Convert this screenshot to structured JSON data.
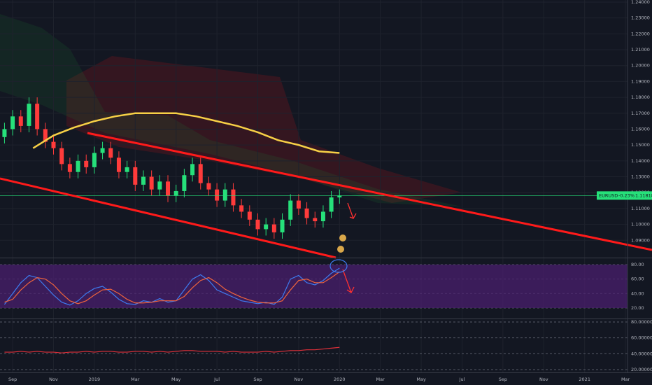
{
  "chart_data": [
    {
      "type": "candlestick",
      "symbol": "EURUSD",
      "change": "-0.23%",
      "last_price": 1.11818,
      "up_color": "#26e07a",
      "down_color": "#ff3b3b",
      "ma_color": "#f7d046",
      "grid": true,
      "x": [
        -0.4,
        0,
        0.4,
        0.8,
        1.2,
        1.6,
        2,
        2.4,
        2.8,
        3.2,
        3.6,
        4,
        4.4,
        4.8,
        5.2,
        5.6,
        6,
        6.4,
        6.8,
        7.2,
        7.6,
        8,
        8.4,
        8.8,
        9.2,
        9.6,
        10,
        10.4,
        10.8,
        11.2,
        11.6,
        12,
        12.4,
        12.8,
        13.2,
        13.6,
        14,
        14.4,
        14.8,
        15.2,
        15.6,
        16
      ],
      "open": [
        1.155,
        1.16,
        1.168,
        1.162,
        1.176,
        1.16,
        1.152,
        1.148,
        1.138,
        1.133,
        1.14,
        1.136,
        1.145,
        1.148,
        1.142,
        1.133,
        1.136,
        1.125,
        1.13,
        1.122,
        1.127,
        1.118,
        1.121,
        1.131,
        1.138,
        1.126,
        1.122,
        1.115,
        1.122,
        1.112,
        1.108,
        1.103,
        1.097,
        1.1,
        1.095,
        1.103,
        1.115,
        1.11,
        1.104,
        1.102,
        1.108,
        1.117
      ],
      "high": [
        1.164,
        1.172,
        1.172,
        1.18,
        1.18,
        1.164,
        1.156,
        1.152,
        1.142,
        1.144,
        1.144,
        1.149,
        1.152,
        1.152,
        1.146,
        1.14,
        1.14,
        1.134,
        1.134,
        1.131,
        1.131,
        1.125,
        1.135,
        1.142,
        1.142,
        1.13,
        1.126,
        1.126,
        1.126,
        1.116,
        1.112,
        1.107,
        1.104,
        1.104,
        1.107,
        1.119,
        1.119,
        1.114,
        1.108,
        1.112,
        1.121,
        1.122
      ],
      "low": [
        1.151,
        1.156,
        1.158,
        1.158,
        1.156,
        1.148,
        1.144,
        1.134,
        1.129,
        1.129,
        1.132,
        1.132,
        1.141,
        1.138,
        1.129,
        1.129,
        1.121,
        1.121,
        1.118,
        1.118,
        1.114,
        1.114,
        1.117,
        1.127,
        1.122,
        1.118,
        1.111,
        1.111,
        1.108,
        1.104,
        1.099,
        1.093,
        1.093,
        1.091,
        1.091,
        1.099,
        1.106,
        1.1,
        1.098,
        1.098,
        1.104,
        1.113
      ],
      "close": [
        1.16,
        1.168,
        1.162,
        1.176,
        1.16,
        1.152,
        1.148,
        1.138,
        1.133,
        1.14,
        1.136,
        1.145,
        1.148,
        1.142,
        1.133,
        1.136,
        1.125,
        1.13,
        1.122,
        1.127,
        1.118,
        1.121,
        1.131,
        1.138,
        1.126,
        1.122,
        1.115,
        1.122,
        1.112,
        1.108,
        1.103,
        1.097,
        1.1,
        1.095,
        1.103,
        1.115,
        1.11,
        1.104,
        1.102,
        1.108,
        1.117,
        1.118
      ],
      "ma_x": [
        1,
        2,
        3,
        4,
        5,
        6,
        7,
        8,
        9,
        10,
        11,
        12,
        13,
        14,
        15,
        16
      ],
      "ma_values": [
        1.148,
        1.156,
        1.161,
        1.165,
        1.168,
        1.17,
        1.17,
        1.17,
        1.168,
        1.165,
        1.162,
        1.158,
        1.153,
        1.15,
        1.146,
        1.145
      ],
      "xlim": [
        -0.62,
        30.1
      ],
      "xticks": [
        {
          "value": 0,
          "label": "Sep"
        },
        {
          "value": 2,
          "label": "Nov"
        },
        {
          "value": 4,
          "label": "2019"
        },
        {
          "value": 6,
          "label": "Mar"
        },
        {
          "value": 8,
          "label": "May"
        },
        {
          "value": 10,
          "label": "Jul"
        },
        {
          "value": 12,
          "label": "Sep"
        },
        {
          "value": 14,
          "label": "Nov"
        },
        {
          "value": 16,
          "label": "2020"
        },
        {
          "value": 18,
          "label": "Mar"
        },
        {
          "value": 20,
          "label": "May"
        },
        {
          "value": 22,
          "label": "Jul"
        },
        {
          "value": 24,
          "label": "Sep"
        },
        {
          "value": 26,
          "label": "Nov"
        },
        {
          "value": 28,
          "label": "2021"
        },
        {
          "value": 30,
          "label": "Mar"
        }
      ],
      "ylim": [
        1.0791,
        1.2413
      ],
      "yticks": [
        {
          "value": 1.09,
          "label": "1.09000"
        },
        {
          "value": 1.1,
          "label": "1.10000"
        },
        {
          "value": 1.11,
          "label": "1.11000"
        },
        {
          "value": 1.12,
          "label": "1.12000"
        },
        {
          "value": 1.13,
          "label": "1.13000"
        },
        {
          "value": 1.14,
          "label": "1.14000"
        },
        {
          "value": 1.15,
          "label": "1.15000"
        },
        {
          "value": 1.16,
          "label": "1.16000"
        },
        {
          "value": 1.17,
          "label": "1.17000"
        },
        {
          "value": 1.18,
          "label": "1.18000"
        },
        {
          "value": 1.19,
          "label": "1.19000"
        },
        {
          "value": 1.2,
          "label": "1.20000"
        },
        {
          "value": 1.21,
          "label": "1.21000"
        },
        {
          "value": 1.22,
          "label": "1.22000"
        },
        {
          "value": 1.23,
          "label": "1.23000"
        },
        {
          "value": 1.24,
          "label": "1.24000"
        }
      ]
    },
    {
      "type": "line",
      "band_color": "#4a1f6e",
      "ylim": [
        5.5,
        88.7
      ],
      "yticks": [
        {
          "value": 20,
          "label": "20.00"
        },
        {
          "value": 40,
          "label": "40.00"
        },
        {
          "value": 60,
          "label": "60.00"
        },
        {
          "value": 80,
          "label": "80.00"
        }
      ],
      "series": [
        {
          "color": "#3d7bf0",
          "values": [
            25,
            40,
            55,
            65,
            62,
            50,
            38,
            28,
            24,
            30,
            40,
            47,
            50,
            42,
            32,
            26,
            25,
            30,
            28,
            33,
            28,
            30,
            45,
            60,
            66,
            58,
            45,
            40,
            35,
            30,
            28,
            26,
            28,
            25,
            35,
            60,
            65,
            55,
            52,
            58,
            68,
            75
          ]
        },
        {
          "color": "#f0643c",
          "values": [
            28,
            32,
            45,
            55,
            62,
            60,
            52,
            40,
            30,
            26,
            30,
            38,
            45,
            46,
            40,
            32,
            27,
            27,
            28,
            30,
            30,
            30,
            36,
            48,
            58,
            62,
            55,
            46,
            40,
            35,
            31,
            28,
            27,
            27,
            30,
            45,
            58,
            60,
            55,
            55,
            62,
            70
          ]
        }
      ]
    },
    {
      "type": "line",
      "ylim": [
        16.5,
        83.5
      ],
      "yticks": [
        {
          "value": 20,
          "label": "20.000000"
        },
        {
          "value": 40,
          "label": "40.000000"
        },
        {
          "value": 60,
          "label": "60.000000"
        },
        {
          "value": 80,
          "label": "80.000000"
        }
      ],
      "series": [
        {
          "color": "#e0303a",
          "values": [
            42,
            42,
            43,
            42,
            43,
            42,
            42,
            41,
            42,
            42,
            43,
            42,
            43,
            43,
            42,
            42,
            43,
            43,
            42,
            43,
            42,
            43,
            44,
            44,
            43,
            43,
            43,
            42,
            43,
            42,
            42,
            42,
            43,
            42,
            43,
            44,
            44,
            45,
            45,
            46,
            47,
            48
          ]
        }
      ]
    }
  ]
}
